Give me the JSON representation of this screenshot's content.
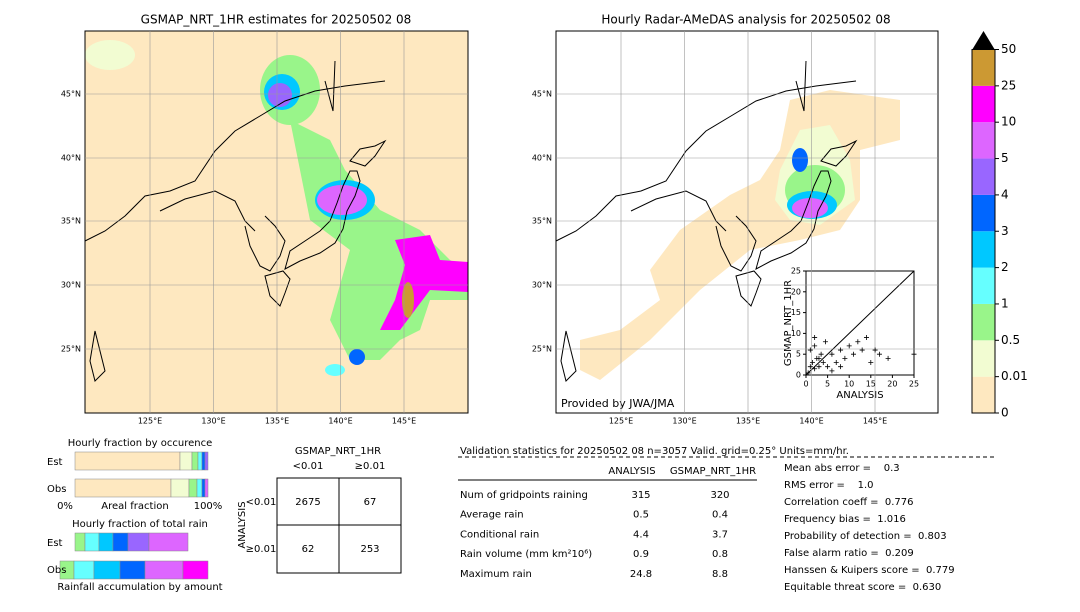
{
  "left_map": {
    "title": "GSMAP_NRT_1HR estimates for 20250502 08",
    "lat_labels": [
      "45°N",
      "40°N",
      "35°N",
      "30°N",
      "25°N"
    ],
    "lon_labels": [
      "125°E",
      "130°E",
      "135°E",
      "140°E",
      "145°E"
    ]
  },
  "right_map": {
    "title": "Hourly Radar-AMeDAS analysis for 20250502 08",
    "credit": "Provided by JWA/JMA",
    "lat_labels": [
      "45°N",
      "40°N",
      "35°N",
      "30°N",
      "25°N"
    ],
    "lon_labels": [
      "125°E",
      "130°E",
      "135°E",
      "140°E",
      "145°E"
    ]
  },
  "colorbar": {
    "ticks": [
      0,
      0.01,
      0.5,
      1,
      2,
      3,
      4,
      5,
      10,
      25,
      50
    ],
    "colors": [
      "#fee8c0",
      "#f2fcd2",
      "#99f58a",
      "#66ffff",
      "#00c8ff",
      "#0066ff",
      "#9966ff",
      "#dd66ff",
      "#ff00ff",
      "#cc9933"
    ]
  },
  "scatter": {
    "xlabel": "ANALYSIS",
    "ylabel": "GSMAP_NRT_1HR",
    "xlim": [
      0,
      25
    ],
    "ylim": [
      0,
      25
    ],
    "xticks": [
      0,
      5,
      10,
      15,
      20,
      25
    ],
    "yticks": [
      0,
      5,
      10,
      15,
      20,
      25
    ],
    "x": [
      0.5,
      1,
      1.5,
      2,
      2.5,
      3,
      3.5,
      4,
      1,
      2,
      3,
      5,
      6,
      7,
      8,
      9,
      10,
      11,
      12,
      13,
      14,
      15,
      17,
      19,
      25,
      4.5,
      6,
      2,
      8,
      16
    ],
    "y": [
      0.5,
      2,
      3,
      1.5,
      4,
      2,
      5,
      3,
      6,
      7,
      4,
      2,
      5,
      3,
      6,
      4,
      7,
      5,
      8,
      6,
      9,
      3,
      5,
      4,
      5,
      8,
      1,
      9,
      2,
      6
    ]
  },
  "occurrence": {
    "title": "Hourly fraction by occurence",
    "row_labels": [
      "Est",
      "Obs"
    ],
    "axis_labels": [
      "0%",
      "Areal fraction",
      "100%"
    ]
  },
  "total_rain": {
    "title": "Hourly fraction of total rain",
    "row_labels": [
      "Est",
      "Obs"
    ],
    "footer": "Rainfall accumulation by amount"
  },
  "contingency": {
    "title": "GSMAP_NRT_1HR",
    "col_labels": [
      "<0.01",
      "≥0.01"
    ],
    "row_title": "ANALYSIS",
    "row_labels": [
      "<0.01",
      "≥0.01"
    ],
    "cells": [
      [
        2675,
        67
      ],
      [
        62,
        253
      ]
    ]
  },
  "validation": {
    "header": "Validation statistics for 20250502 08  n=3057 Valid. grid=0.25° Units=mm/hr.",
    "columns": [
      "ANALYSIS",
      "GSMAP_NRT_1HR"
    ],
    "rows": [
      {
        "label": "Num of gridpoints raining",
        "values": [
          315,
          320
        ]
      },
      {
        "label": "Average rain",
        "values": [
          0.5,
          0.4
        ]
      },
      {
        "label": "Conditional rain",
        "values": [
          4.4,
          3.7
        ]
      },
      {
        "label": "Rain volume (mm km²10⁶)",
        "values": [
          0.9,
          0.8
        ]
      },
      {
        "label": "Maximum rain",
        "values": [
          24.8,
          8.8
        ]
      }
    ],
    "scores": [
      "Mean abs error =    0.3",
      "RMS error =    1.0",
      "Correlation coeff =  0.776",
      "Frequency bias =  1.016",
      "Probability of detection =  0.803",
      "False alarm ratio =  0.209",
      "Hanssen & Kuipers score =  0.779",
      "Equitable threat score =  0.630"
    ]
  }
}
